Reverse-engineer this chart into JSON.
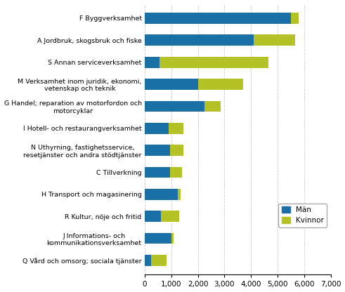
{
  "categories": [
    "F Byggverksamhet",
    "A Jordbruk, skogsbruk och fiske",
    "S Annan serviceverksamhet",
    "M Verksamhet inom juridik, ekonomi,\nvetenskap och teknik",
    "G Handel; reparation av motorfordon och\nmotorcyklar",
    "I Hotell- och restaurangverksamhet",
    "N Uthyrning, fastighetsservice,\nresetjänster och andra stödtjänster",
    "C Tillverkning",
    "H Transport och magasinering",
    "R Kultur, nöje och fritid",
    "J Informations- och\nkommunikationsverksamhet",
    "Q Vård och omsorg; sociala tjänster"
  ],
  "man_values": [
    5500,
    4100,
    550,
    2000,
    2250,
    900,
    950,
    950,
    1250,
    600,
    1000,
    230
  ],
  "kvinnor_values": [
    300,
    1550,
    4100,
    1700,
    600,
    550,
    500,
    450,
    100,
    700,
    100,
    600
  ],
  "man_color": "#1a6fa6",
  "kvinnor_color": "#b5c225",
  "xlim": [
    0,
    7000
  ],
  "xticks": [
    0,
    1000,
    2000,
    3000,
    4000,
    5000,
    6000,
    7000
  ],
  "xtick_labels": [
    "0",
    "1,000",
    "2,000",
    "3,000",
    "4,000",
    "5,000",
    "6,000",
    "7,000"
  ],
  "legend_man": "Män",
  "legend_kvinnor": "Kvinnor",
  "bar_height": 0.5,
  "background_color": "#ffffff",
  "grid_color": "#c8c8c8"
}
